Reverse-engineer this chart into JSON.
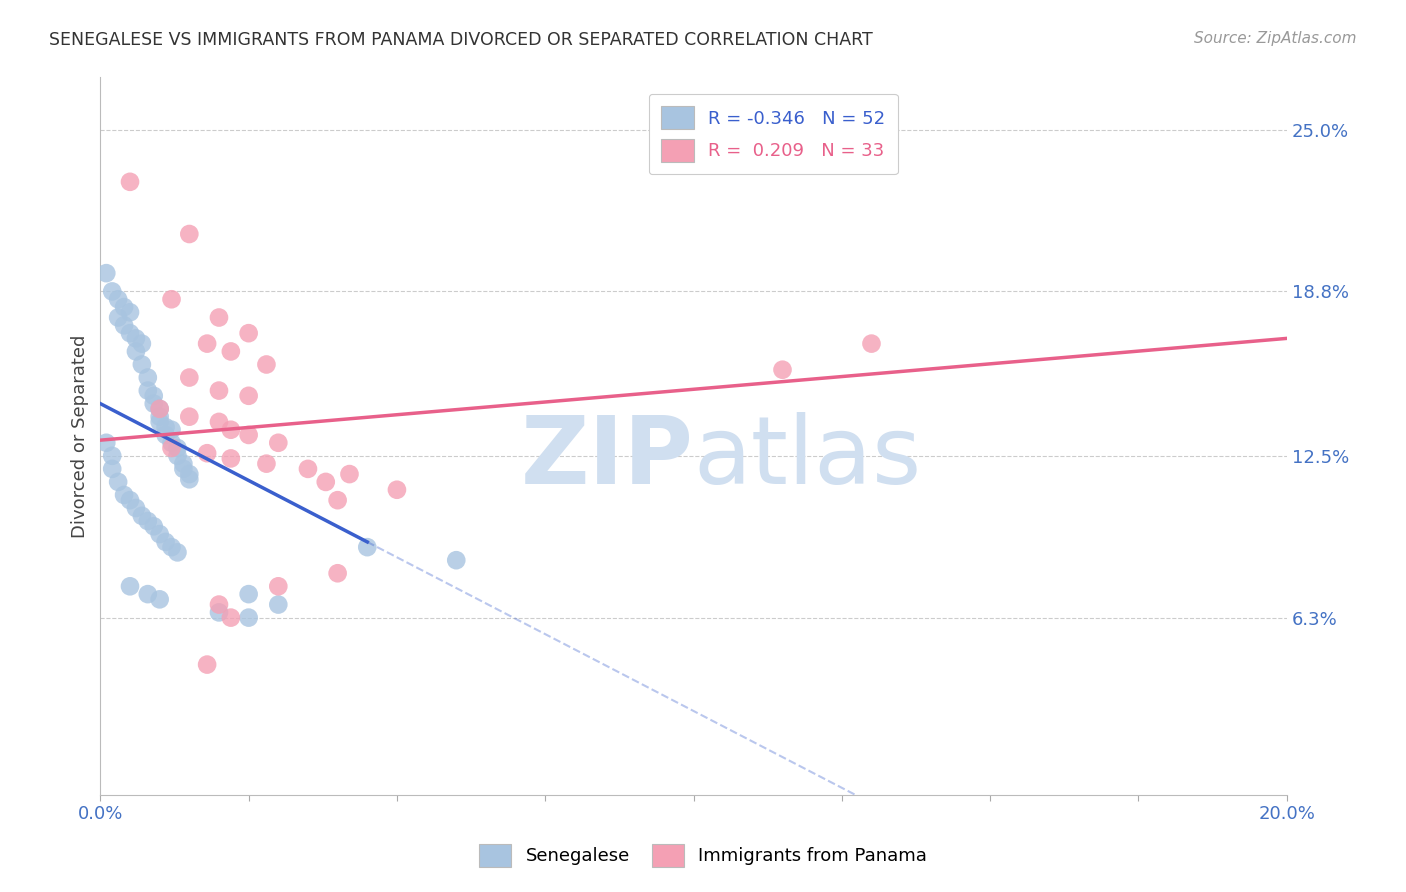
{
  "title": "SENEGALESE VS IMMIGRANTS FROM PANAMA DIVORCED OR SEPARATED CORRELATION CHART",
  "source": "Source: ZipAtlas.com",
  "ylabel": "Divorced or Separated",
  "y_tick_labels": [
    "25.0%",
    "18.8%",
    "12.5%",
    "6.3%"
  ],
  "y_tick_values": [
    0.25,
    0.188,
    0.125,
    0.063
  ],
  "xlim": [
    0.0,
    0.2
  ],
  "ylim": [
    -0.005,
    0.27
  ],
  "legend_blue_r": "-0.346",
  "legend_blue_n": "52",
  "legend_pink_r": "0.209",
  "legend_pink_n": "33",
  "blue_color": "#a8c4e0",
  "pink_color": "#f4a0b4",
  "blue_line_color": "#3a5fcd",
  "pink_line_color": "#e8608a",
  "blue_scatter": [
    [
      0.001,
      0.195
    ],
    [
      0.002,
      0.188
    ],
    [
      0.003,
      0.185
    ],
    [
      0.003,
      0.178
    ],
    [
      0.004,
      0.182
    ],
    [
      0.004,
      0.175
    ],
    [
      0.005,
      0.18
    ],
    [
      0.005,
      0.172
    ],
    [
      0.006,
      0.17
    ],
    [
      0.006,
      0.165
    ],
    [
      0.007,
      0.168
    ],
    [
      0.007,
      0.16
    ],
    [
      0.008,
      0.155
    ],
    [
      0.008,
      0.15
    ],
    [
      0.009,
      0.148
    ],
    [
      0.009,
      0.145
    ],
    [
      0.01,
      0.143
    ],
    [
      0.01,
      0.14
    ],
    [
      0.01,
      0.138
    ],
    [
      0.011,
      0.136
    ],
    [
      0.011,
      0.133
    ],
    [
      0.012,
      0.135
    ],
    [
      0.012,
      0.13
    ],
    [
      0.013,
      0.128
    ],
    [
      0.013,
      0.125
    ],
    [
      0.014,
      0.122
    ],
    [
      0.014,
      0.12
    ],
    [
      0.015,
      0.118
    ],
    [
      0.015,
      0.116
    ],
    [
      0.001,
      0.13
    ],
    [
      0.002,
      0.125
    ],
    [
      0.002,
      0.12
    ],
    [
      0.003,
      0.115
    ],
    [
      0.004,
      0.11
    ],
    [
      0.005,
      0.108
    ],
    [
      0.006,
      0.105
    ],
    [
      0.007,
      0.102
    ],
    [
      0.008,
      0.1
    ],
    [
      0.009,
      0.098
    ],
    [
      0.01,
      0.095
    ],
    [
      0.011,
      0.092
    ],
    [
      0.012,
      0.09
    ],
    [
      0.013,
      0.088
    ],
    [
      0.005,
      0.075
    ],
    [
      0.008,
      0.072
    ],
    [
      0.01,
      0.07
    ],
    [
      0.02,
      0.065
    ],
    [
      0.025,
      0.063
    ],
    [
      0.03,
      0.068
    ],
    [
      0.025,
      0.072
    ],
    [
      0.06,
      0.085
    ],
    [
      0.045,
      0.09
    ]
  ],
  "pink_scatter": [
    [
      0.005,
      0.23
    ],
    [
      0.015,
      0.21
    ],
    [
      0.012,
      0.185
    ],
    [
      0.02,
      0.178
    ],
    [
      0.025,
      0.172
    ],
    [
      0.018,
      0.168
    ],
    [
      0.022,
      0.165
    ],
    [
      0.028,
      0.16
    ],
    [
      0.015,
      0.155
    ],
    [
      0.02,
      0.15
    ],
    [
      0.025,
      0.148
    ],
    [
      0.01,
      0.143
    ],
    [
      0.015,
      0.14
    ],
    [
      0.02,
      0.138
    ],
    [
      0.022,
      0.135
    ],
    [
      0.025,
      0.133
    ],
    [
      0.03,
      0.13
    ],
    [
      0.012,
      0.128
    ],
    [
      0.018,
      0.126
    ],
    [
      0.022,
      0.124
    ],
    [
      0.028,
      0.122
    ],
    [
      0.035,
      0.12
    ],
    [
      0.038,
      0.115
    ],
    [
      0.042,
      0.118
    ],
    [
      0.115,
      0.158
    ],
    [
      0.13,
      0.168
    ],
    [
      0.04,
      0.108
    ],
    [
      0.05,
      0.112
    ],
    [
      0.03,
      0.075
    ],
    [
      0.04,
      0.08
    ],
    [
      0.02,
      0.068
    ],
    [
      0.022,
      0.063
    ],
    [
      0.018,
      0.045
    ]
  ],
  "watermark_zip": "ZIP",
  "watermark_atlas": "atlas",
  "watermark_color": "#d0dff0"
}
